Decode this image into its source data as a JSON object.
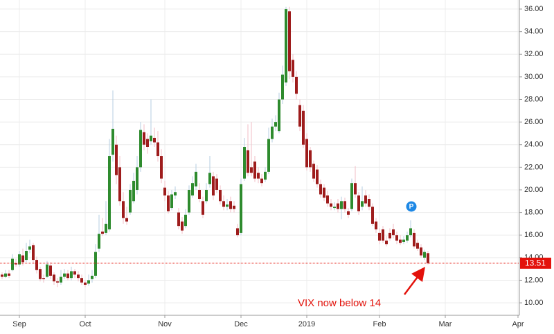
{
  "chart_data": {
    "type": "candlestick",
    "open": [
      12.5,
      12.3,
      12.6,
      12.9,
      13.5,
      13.4,
      14.2,
      13.8,
      14.7,
      15.1,
      13.8,
      13.0,
      12.2,
      12.3,
      13.3,
      12.5,
      11.9,
      11.8,
      12.3,
      12.6,
      12.2,
      12.8,
      12.5,
      12.2,
      11.8,
      11.7,
      12.1,
      12.4,
      14.8,
      16.3,
      16.2,
      16.5,
      23.1,
      24.0,
      22.0,
      19.0,
      17.5,
      18.0,
      19.0,
      20.0,
      22.0,
      25.1,
      24.5,
      24.3,
      24.6,
      24.2,
      23.0,
      20.2,
      19.5,
      18.4,
      19.5,
      18.0,
      17.2,
      16.8,
      18.0,
      19.5,
      20.3,
      20.0,
      19.0,
      19.0,
      20.5,
      21.2,
      21.0,
      20.0,
      19.0,
      18.5,
      19.0,
      18.6,
      16.6,
      16.2,
      21.0,
      23.5,
      22.0,
      22.5,
      21.5,
      21.0,
      20.9,
      21.6,
      24.5,
      25.6,
      25.2,
      28.0,
      29.5,
      35.8,
      31.5,
      30.0,
      27.5,
      27.0,
      24.5,
      23.5,
      22.3,
      21.8,
      20.5,
      20.2,
      19.5,
      18.8,
      18.4,
      18.8,
      18.3,
      19.0,
      18.1,
      18.3,
      20.6,
      19.5,
      18.5,
      19.5,
      19.2,
      18.5,
      17.2,
      16.2,
      16.5,
      15.5,
      16.2,
      16.5,
      16.0,
      15.6,
      15.4,
      15.5,
      16.0,
      16.2,
      15.3,
      14.9,
      14.0,
      14.4
    ],
    "high": [
      12.7,
      12.9,
      12.9,
      14.3,
      13.9,
      14.6,
      14.8,
      15.3,
      15.6,
      15.3,
      14.1,
      13.2,
      12.5,
      13.7,
      13.6,
      12.7,
      12.2,
      12.9,
      13.0,
      12.9,
      13.2,
      13.0,
      12.8,
      12.5,
      12.0,
      12.5,
      12.9,
      15.2,
      17.8,
      17.5,
      19.0,
      24.5,
      28.8,
      24.8,
      23.0,
      19.8,
      18.5,
      20.5,
      21.5,
      23.0,
      26.0,
      25.8,
      25.0,
      28.0,
      25.5,
      25.2,
      23.6,
      20.8,
      19.9,
      20.0,
      20.3,
      18.4,
      17.6,
      18.3,
      20.4,
      21.2,
      22.3,
      20.6,
      19.4,
      20.6,
      23.0,
      21.6,
      21.4,
      20.4,
      19.5,
      19.2,
      19.4,
      19.0,
      17.0,
      21.0,
      24.6,
      25.8,
      26.0,
      23.0,
      22.0,
      21.4,
      22.0,
      25.5,
      26.3,
      26.6,
      28.6,
      31.0,
      36.2,
      36.2,
      32.0,
      30.5,
      28.0,
      27.5,
      25.0,
      23.8,
      22.6,
      22.2,
      20.9,
      20.5,
      19.9,
      19.2,
      18.9,
      19.2,
      19.4,
      19.3,
      18.4,
      21.0,
      22.1,
      19.8,
      20.3,
      20.0,
      19.6,
      18.8,
      17.5,
      16.6,
      16.8,
      15.9,
      16.6,
      17.0,
      16.3,
      16.0,
      15.9,
      16.3,
      17.3,
      16.5,
      15.6,
      15.2,
      14.7,
      14.6
    ],
    "low": [
      12.1,
      12.2,
      12.2,
      12.8,
      13.2,
      13.2,
      13.3,
      13.6,
      14.4,
      13.5,
      12.6,
      11.9,
      11.8,
      12.2,
      12.1,
      11.6,
      11.4,
      11.6,
      12.1,
      12.0,
      12.0,
      12.2,
      11.9,
      11.6,
      11.4,
      11.5,
      11.8,
      12.2,
      14.5,
      15.9,
      16.0,
      16.3,
      22.5,
      20.5,
      18.6,
      17.0,
      16.9,
      17.8,
      18.8,
      19.6,
      21.6,
      23.5,
      23.2,
      24.0,
      23.8,
      22.5,
      20.6,
      19.0,
      17.9,
      18.2,
      19.2,
      16.5,
      16.1,
      16.6,
      17.8,
      19.3,
      20.0,
      18.9,
      17.5,
      18.8,
      20.2,
      19.1,
      19.7,
      18.7,
      18.2,
      18.2,
      18.0,
      18.0,
      15.8,
      16.0,
      20.8,
      21.2,
      21.2,
      20.7,
      20.6,
      20.3,
      20.7,
      21.4,
      24.2,
      25.2,
      25.0,
      27.6,
      29.2,
      29.8,
      29.5,
      28.0,
      25.2,
      23.7,
      21.7,
      21.6,
      20.7,
      20.2,
      19.3,
      19.0,
      18.5,
      18.2,
      18.2,
      18.0,
      17.4,
      18.0,
      17.5,
      18.1,
      19.3,
      17.8,
      18.2,
      18.5,
      18.2,
      16.8,
      16.2,
      15.2,
      15.3,
      15.0,
      15.5,
      15.7,
      15.2,
      15.1,
      15.2,
      15.3,
      15.8,
      14.8,
      14.6,
      14.0,
      13.8,
      13.4
    ],
    "close": [
      12.3,
      12.6,
      12.4,
      13.9,
      13.4,
      14.3,
      13.6,
      14.6,
      15.0,
      13.8,
      12.9,
      12.1,
      12.1,
      13.4,
      12.4,
      11.9,
      11.8,
      12.3,
      12.6,
      12.2,
      12.8,
      12.5,
      12.2,
      11.8,
      11.6,
      12.0,
      12.4,
      14.5,
      16.1,
      16.1,
      17.0,
      23.0,
      25.4,
      21.3,
      19.0,
      17.5,
      17.2,
      20.0,
      20.8,
      22.0,
      25.3,
      24.0,
      23.8,
      24.8,
      24.2,
      23.0,
      21.0,
      19.5,
      18.1,
      19.6,
      19.8,
      16.8,
      16.4,
      17.8,
      20.0,
      20.6,
      21.6,
      19.2,
      17.8,
      20.0,
      21.5,
      19.5,
      20.0,
      19.0,
      18.5,
      18.7,
      18.3,
      18.3,
      16.0,
      20.5,
      23.8,
      21.5,
      21.5,
      21.0,
      21.0,
      20.6,
      21.6,
      24.5,
      25.6,
      26.0,
      28.0,
      30.2,
      36.0,
      30.5,
      30.0,
      28.5,
      25.6,
      24.0,
      22.0,
      22.0,
      21.0,
      20.5,
      19.6,
      19.3,
      18.8,
      18.5,
      18.5,
      18.3,
      19.0,
      18.3,
      17.8,
      20.6,
      19.6,
      18.1,
      19.0,
      18.8,
      18.5,
      17.0,
      16.5,
      15.5,
      15.5,
      15.2,
      15.7,
      16.0,
      15.5,
      15.3,
      15.6,
      16.0,
      16.6,
      15.0,
      14.8,
      14.2,
      14.5,
      13.51
    ],
    "up_color": "#2e8b2e",
    "down_color": "#9e1c1c",
    "up_wick_color": "#b4cde0",
    "down_wick_color": "#f2bcc6",
    "xlim": [
      -0.6,
      149.4
    ],
    "xticks": [
      {
        "value": 5,
        "label": "Sep"
      },
      {
        "value": 24,
        "label": "Oct"
      },
      {
        "value": 47,
        "label": "Nov"
      },
      {
        "value": 69,
        "label": "Dec"
      },
      {
        "value": 88,
        "label": "2019"
      },
      {
        "value": 109,
        "label": "Feb"
      },
      {
        "value": 128,
        "label": "Mar"
      },
      {
        "value": 149,
        "label": "Apr"
      }
    ],
    "ylim": [
      8.9,
      36.8
    ],
    "yticks": [
      {
        "value": 10,
        "label": "10.00"
      },
      {
        "value": 12,
        "label": "12.00"
      },
      {
        "value": 14,
        "label": "14.00"
      },
      {
        "value": 16,
        "label": "16.00"
      },
      {
        "value": 18,
        "label": "18.00"
      },
      {
        "value": 20,
        "label": "20.00"
      },
      {
        "value": 22,
        "label": "22.00"
      },
      {
        "value": 24,
        "label": "24.00"
      },
      {
        "value": 26,
        "label": "26.00"
      },
      {
        "value": 28,
        "label": "28.00"
      },
      {
        "value": 30,
        "label": "30.00"
      },
      {
        "value": 32,
        "label": "32.00"
      },
      {
        "value": 34,
        "label": "34.00"
      },
      {
        "value": 36,
        "label": "36.00"
      }
    ],
    "grid": true,
    "last_price": 13.51,
    "last_price_color": "#e3120b",
    "marker_label": "P",
    "annotation": "VIX now below 14"
  }
}
